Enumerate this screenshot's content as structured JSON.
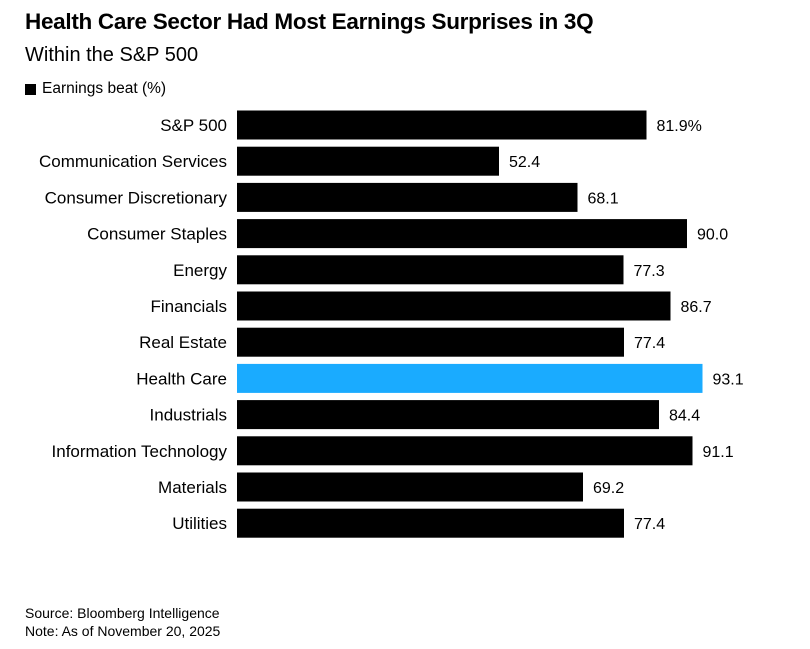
{
  "title": "Health Care Sector Had Most Earnings Surprises in 3Q",
  "subtitle": "Within the S&P 500",
  "legend": {
    "label": "Earnings beat (%)"
  },
  "source": "Source: Bloomberg Intelligence",
  "note": "Note: As of November 20, 2025",
  "colors": {
    "bar": "#000000",
    "highlight": "#1aabff"
  },
  "chart_data": {
    "type": "bar",
    "orientation": "horizontal",
    "title": "Health Care Sector Had Most Earnings Surprises in 3Q",
    "subtitle": "Within the S&P 500",
    "xlim": [
      0,
      100
    ],
    "grid": false,
    "legend_position": "top-left",
    "categories": [
      "S&P 500",
      "Communication Services",
      "Consumer Discretionary",
      "Consumer Staples",
      "Energy",
      "Financials",
      "Real Estate",
      "Health Care",
      "Industrials",
      "Information Technology",
      "Materials",
      "Utilities"
    ],
    "series": [
      {
        "name": "Earnings beat (%)",
        "values": [
          81.9,
          52.4,
          68.1,
          90.0,
          77.3,
          86.7,
          77.4,
          93.1,
          84.4,
          91.1,
          69.2,
          77.4
        ]
      }
    ],
    "value_labels": [
      "81.9%",
      "52.4",
      "68.1",
      "90.0",
      "77.3",
      "86.7",
      "77.4",
      "93.1",
      "84.4",
      "91.1",
      "69.2",
      "77.4"
    ],
    "highlight_category": "Health Care"
  }
}
